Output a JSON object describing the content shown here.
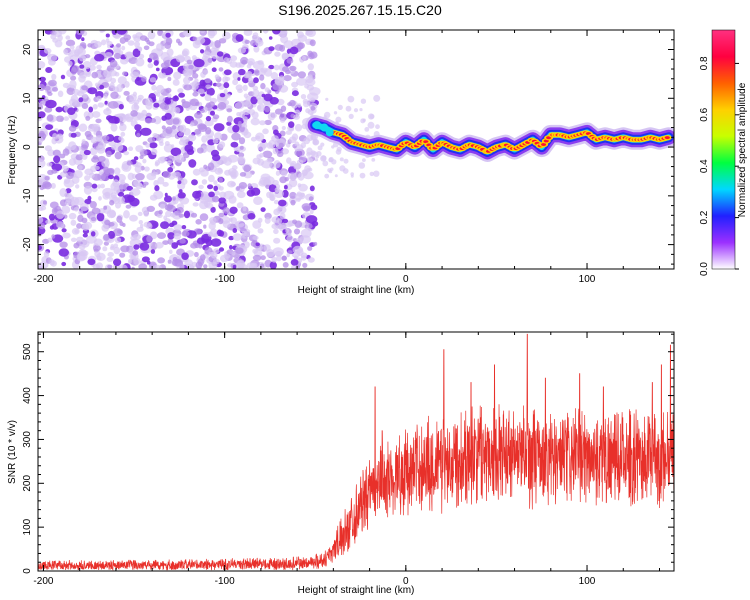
{
  "title": "S196.2025.267.15.15.C20",
  "colors": {
    "snr_line": "#e8302a",
    "dots_light": "#d9c7f4",
    "dots_mid": "#b48ee8",
    "dots_dark": "#7a2be0"
  },
  "chart_data": [
    {
      "type": "heatmap",
      "xlabel": "Height of straight line (km)",
      "ylabel": "Frequency (Hz)",
      "xlim": [
        -203,
        148
      ],
      "ylim": [
        -25,
        24
      ],
      "xticks": [
        -200,
        -100,
        0,
        100
      ],
      "yticks": [
        -20,
        -10,
        0,
        10,
        20
      ],
      "noise_region_x": [
        -203,
        -50
      ],
      "signal_track": {
        "x": [
          -50,
          -45,
          -40,
          -35,
          -30,
          -25,
          -20,
          -15,
          -10,
          -5,
          0,
          5,
          10,
          15,
          20,
          25,
          30,
          35,
          40,
          45,
          50,
          55,
          60,
          65,
          70,
          75,
          80,
          85,
          90,
          95,
          100,
          105,
          110,
          115,
          120,
          125,
          130,
          135,
          140,
          145
        ],
        "freq": [
          4.5,
          4,
          3,
          2.5,
          1,
          0.5,
          0,
          0.5,
          0,
          -0.5,
          1,
          0,
          1.5,
          -0.5,
          1,
          0,
          -0.5,
          0.5,
          0,
          -1,
          0,
          0.5,
          -0.5,
          0.5,
          1.5,
          0,
          2.5,
          2.5,
          2,
          2.5,
          3,
          1.5,
          2,
          1.5,
          2,
          1.5,
          1.5,
          2,
          1.5,
          2
        ]
      },
      "colorbar": {
        "label": "Normalized spectral amplitude",
        "ticks": [
          0.0,
          0.2,
          0.4,
          0.6,
          0.8
        ],
        "tick_labels": [
          "0.0",
          "0.2",
          "0.4",
          "0.6",
          "0.8"
        ],
        "range": [
          0,
          0.93
        ],
        "colormap": [
          "#ffffff",
          "#9b30ff",
          "#2020ff",
          "#00d8ff",
          "#00ff40",
          "#c8ff00",
          "#ffd000",
          "#ff6000",
          "#ff0040",
          "#ff3080"
        ]
      }
    },
    {
      "type": "line",
      "xlabel": "Height of straight line (km)",
      "ylabel": "SNR (10 * v/v)",
      "xlim": [
        -203,
        148
      ],
      "ylim": [
        0,
        545
      ],
      "xticks": [
        -200,
        -100,
        0,
        100
      ],
      "yticks": [
        0,
        100,
        200,
        300,
        400,
        500
      ],
      "series": [
        {
          "x": [
            -203,
            -190,
            -175,
            -160,
            -145,
            -130,
            -115,
            -100,
            -85,
            -70,
            -55,
            -45,
            -40,
            -35,
            -30,
            -25,
            -20,
            -15,
            -10,
            -5,
            0,
            5,
            10,
            15,
            20,
            25,
            30,
            35,
            40,
            45,
            50,
            55,
            60,
            65,
            70,
            75,
            80,
            85,
            90,
            95,
            100,
            105,
            110,
            115,
            120,
            125,
            130,
            135,
            140,
            148
          ],
          "baseline": [
            12,
            13,
            12,
            13,
            14,
            13,
            14,
            15,
            16,
            16,
            18,
            25,
            50,
            80,
            115,
            150,
            175,
            195,
            210,
            220,
            225,
            235,
            240,
            245,
            250,
            255,
            260,
            265,
            270,
            272,
            270,
            268,
            265,
            262,
            260,
            258,
            255,
            255,
            258,
            260,
            262,
            260,
            258,
            255,
            255,
            258,
            260,
            258,
            255,
            260
          ],
          "spread": [
            15,
            16,
            15,
            16,
            16,
            17,
            17,
            18,
            18,
            19,
            20,
            25,
            40,
            60,
            80,
            90,
            100,
            110,
            115,
            120,
            125,
            130,
            140,
            145,
            150,
            150,
            150,
            145,
            150,
            140,
            140,
            135,
            140,
            160,
            150,
            140,
            140,
            135,
            140,
            140,
            135,
            140,
            140,
            135,
            140,
            140,
            135,
            135,
            140,
            140
          ],
          "peaks": [
            [
              -17,
              420
            ],
            [
              -13,
              320
            ],
            [
              21,
              505
            ],
            [
              36,
              430
            ],
            [
              49,
              470
            ],
            [
              67,
              540
            ],
            [
              77,
              440
            ],
            [
              96,
              450
            ],
            [
              109,
              420
            ],
            [
              136,
              430
            ],
            [
              146,
              515
            ],
            [
              141,
              470
            ]
          ]
        }
      ]
    }
  ]
}
